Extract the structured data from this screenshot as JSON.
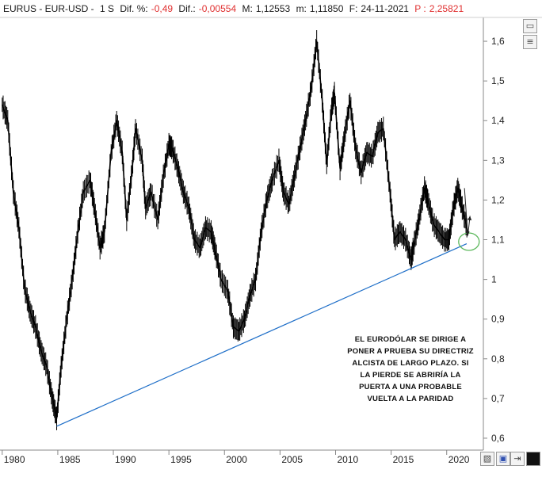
{
  "header": {
    "symbol": "EURUS - EUR-USD -",
    "period": "1 S",
    "pct_label": "Dif. %:",
    "pct_value": "-0,49",
    "diff_label": "Dif.:",
    "diff_value": "-0,00554",
    "max_label": "M:",
    "max_value": "1,12553",
    "min_label": "m:",
    "min_value": "1,11850",
    "date_label": "F:",
    "date_value": "24-11-2021",
    "p_label": "P :",
    "p_value": "2,25821"
  },
  "toolbar": {
    "top_icons": [
      "window-restore-icon",
      "window-list-icon"
    ],
    "bottom_icons": [
      "chart-style-icon",
      "save-icon",
      "export-icon",
      "black-square-icon"
    ]
  },
  "annotation": {
    "lines": [
      "EL EURODÓLAR SE DIRIGE A",
      "PONER A PRUEBA SU DIRECTRIZ",
      "ALCISTA DE LARGO PLAZO. SI",
      "LA PIERDE SE ABRIRÍA LA",
      "PUERTA A UNA PROBABLE",
      "VUELTA A LA PARIDAD"
    ]
  },
  "colors": {
    "price": "#000000",
    "trendline": "#1f6fc8",
    "circle": "#5cb85c",
    "negative": "#e03030",
    "axis_text": "#222222"
  },
  "chart_data": {
    "type": "line",
    "title": "",
    "series": [
      {
        "x": [
          1980.0,
          1980.5,
          1981.0,
          1981.5,
          1982.0,
          1982.5,
          1983.0,
          1983.5,
          1984.0,
          1984.5,
          1984.9,
          1985.3,
          1985.8,
          1986.3,
          1986.8,
          1987.3,
          1987.9,
          1988.3,
          1988.8,
          1989.2,
          1989.8,
          1990.3,
          1990.8,
          1991.2,
          1991.7,
          1992.0,
          1992.6,
          1992.9,
          1993.4,
          1994.0,
          1994.5,
          1995.0,
          1995.3,
          1995.8,
          1996.3,
          1996.8,
          1997.3,
          1997.8,
          1998.3,
          1998.8,
          1999.2,
          1999.7,
          2000.3,
          2000.8,
          2001.3,
          2001.8,
          2002.3,
          2002.8,
          2003.3,
          2003.8,
          2004.3,
          2004.9,
          2005.3,
          2005.8,
          2006.3,
          2006.8,
          2007.3,
          2007.8,
          2008.3,
          2008.8,
          2009.2,
          2009.6,
          2009.9,
          2010.4,
          2010.8,
          2011.3,
          2011.8,
          2012.3,
          2012.8,
          2013.3,
          2013.8,
          2014.3,
          2014.9,
          2015.3,
          2015.8,
          2016.3,
          2016.8,
          2017.0,
          2017.5,
          2018.0,
          2018.3,
          2018.8,
          2019.3,
          2019.8,
          2020.2,
          2020.6,
          2021.0,
          2021.4,
          2021.9
        ],
        "y": [
          1.44,
          1.4,
          1.22,
          1.13,
          0.98,
          0.92,
          0.88,
          0.82,
          0.78,
          0.7,
          0.65,
          0.78,
          0.9,
          1.0,
          1.12,
          1.22,
          1.25,
          1.18,
          1.08,
          1.12,
          1.32,
          1.4,
          1.32,
          1.15,
          1.28,
          1.38,
          1.3,
          1.18,
          1.22,
          1.15,
          1.26,
          1.34,
          1.33,
          1.28,
          1.22,
          1.18,
          1.1,
          1.08,
          1.13,
          1.12,
          1.07,
          1.0,
          0.97,
          0.88,
          0.87,
          0.9,
          0.96,
          1.0,
          1.12,
          1.2,
          1.25,
          1.3,
          1.22,
          1.19,
          1.26,
          1.33,
          1.4,
          1.48,
          1.6,
          1.45,
          1.29,
          1.42,
          1.47,
          1.28,
          1.36,
          1.45,
          1.33,
          1.27,
          1.32,
          1.31,
          1.37,
          1.38,
          1.22,
          1.1,
          1.12,
          1.1,
          1.05,
          1.08,
          1.15,
          1.23,
          1.2,
          1.14,
          1.12,
          1.1,
          1.1,
          1.18,
          1.23,
          1.18,
          1.12
        ]
      },
      {
        "x": [
          1984.9,
          2021.8
        ],
        "y": [
          0.63,
          1.09
        ]
      }
    ],
    "xlim": [
      1979.8,
      2023.3
    ],
    "ylim": [
      0.57,
      1.66
    ],
    "x_ticks": [
      1980,
      1985,
      1990,
      1995,
      2000,
      2005,
      2010,
      2015,
      2020
    ],
    "x_tick_labels": [
      "1980",
      "1985",
      "1990",
      "1995",
      "2000",
      "2005",
      "2010",
      "2015",
      "2020"
    ],
    "y_ticks": [
      0.6,
      0.7,
      0.8,
      0.9,
      1.0,
      1.1,
      1.2,
      1.3,
      1.4,
      1.5,
      1.6
    ],
    "y_tick_labels": [
      "0,6",
      "0,7",
      "0,8",
      "0,9",
      "1",
      "1,1",
      "1,2",
      "1,3",
      "1,4",
      "1,5",
      "1,6"
    ],
    "arrow": {
      "from": [
        2021.6,
        1.23
      ],
      "to": [
        2021.9,
        1.11
      ]
    },
    "arrow2": {
      "from": [
        2021.9,
        1.11
      ],
      "to": [
        2022.1,
        1.16
      ]
    },
    "circle": {
      "x": 2022.0,
      "y": 1.095
    },
    "grid": false
  }
}
